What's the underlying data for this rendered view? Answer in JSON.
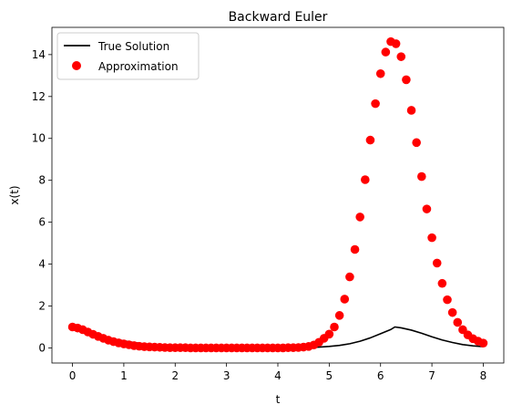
{
  "chart_data": {
    "type": "line",
    "title": "Backward Euler",
    "xlabel": "t",
    "ylabel": "x(t)",
    "xlim": [
      -0.4,
      8.4
    ],
    "ylim": [
      -0.72,
      15.3
    ],
    "xticks": [
      0,
      1,
      2,
      3,
      4,
      5,
      6,
      7,
      8
    ],
    "yticks": [
      0,
      2,
      4,
      6,
      8,
      10,
      12,
      14
    ],
    "grid": false,
    "legend_position": "top-left",
    "series": [
      {
        "name": "True Solution",
        "kind": "line",
        "color": "#000000",
        "x": [
          0,
          0.2,
          0.4,
          0.6,
          0.8,
          1.0,
          1.2,
          1.4,
          1.6,
          1.8,
          2.0,
          2.2,
          2.4,
          2.6,
          2.8,
          3.0,
          3.2,
          3.4,
          3.6,
          3.8,
          4.0,
          4.2,
          4.4,
          4.6,
          4.8,
          5.0,
          5.2,
          5.4,
          5.6,
          5.8,
          6.0,
          6.2,
          6.28,
          6.4,
          6.6,
          6.8,
          7.0,
          7.2,
          7.4,
          7.6,
          7.8,
          8.0
        ],
        "y": [
          1.0,
          0.82,
          0.67,
          0.54,
          0.43,
          0.34,
          0.26,
          0.19,
          0.14,
          0.1,
          0.07,
          0.05,
          0.03,
          0.02,
          0.01,
          0.01,
          0.0,
          0.0,
          0.0,
          0.0,
          0.0,
          0.0,
          0.01,
          0.02,
          0.04,
          0.07,
          0.12,
          0.2,
          0.32,
          0.48,
          0.68,
          0.88,
          1.0,
          0.96,
          0.85,
          0.7,
          0.53,
          0.38,
          0.26,
          0.16,
          0.1,
          0.06
        ]
      },
      {
        "name": "Approximation",
        "kind": "scatter",
        "color": "#ff0000",
        "x": [
          0,
          0.1,
          0.2,
          0.3,
          0.4,
          0.5,
          0.6,
          0.7,
          0.8,
          0.9,
          1.0,
          1.1,
          1.2,
          1.3,
          1.4,
          1.5,
          1.6,
          1.7,
          1.8,
          1.9,
          2.0,
          2.1,
          2.2,
          2.3,
          2.4,
          2.5,
          2.6,
          2.7,
          2.8,
          2.9,
          3.0,
          3.1,
          3.2,
          3.3,
          3.4,
          3.5,
          3.6,
          3.7,
          3.8,
          3.9,
          4.0,
          4.1,
          4.2,
          4.3,
          4.4,
          4.5,
          4.6,
          4.7,
          4.8,
          4.9,
          5.0,
          5.1,
          5.2,
          5.3,
          5.4,
          5.5,
          5.6,
          5.7,
          5.8,
          5.9,
          6.0,
          6.1,
          6.2,
          6.3,
          6.4,
          6.5,
          6.6,
          6.7,
          6.8,
          6.9,
          7.0,
          7.1,
          7.2,
          7.3,
          7.4,
          7.5,
          7.6,
          7.7,
          7.8,
          7.9,
          8.0
        ],
        "y": [
          1.0,
          0.95,
          0.87,
          0.76,
          0.65,
          0.55,
          0.46,
          0.37,
          0.3,
          0.24,
          0.19,
          0.15,
          0.11,
          0.08,
          0.06,
          0.05,
          0.04,
          0.03,
          0.02,
          0.01,
          0.01,
          0.01,
          0.01,
          0.0,
          0.0,
          0.0,
          0.0,
          0.0,
          0.0,
          0.0,
          0.0,
          0.0,
          0.0,
          0.0,
          0.0,
          0.0,
          0.0,
          0.0,
          0.0,
          0.0,
          0.0,
          0.0,
          0.01,
          0.01,
          0.02,
          0.04,
          0.07,
          0.14,
          0.27,
          0.46,
          0.66,
          1.0,
          1.55,
          2.33,
          3.39,
          4.7,
          6.25,
          8.03,
          9.92,
          11.66,
          13.09,
          14.12,
          14.62,
          14.52,
          13.9,
          12.8,
          11.34,
          9.8,
          8.18,
          6.63,
          5.26,
          4.05,
          3.08,
          2.3,
          1.69,
          1.22,
          0.87,
          0.62,
          0.44,
          0.32,
          0.23
        ]
      }
    ]
  }
}
